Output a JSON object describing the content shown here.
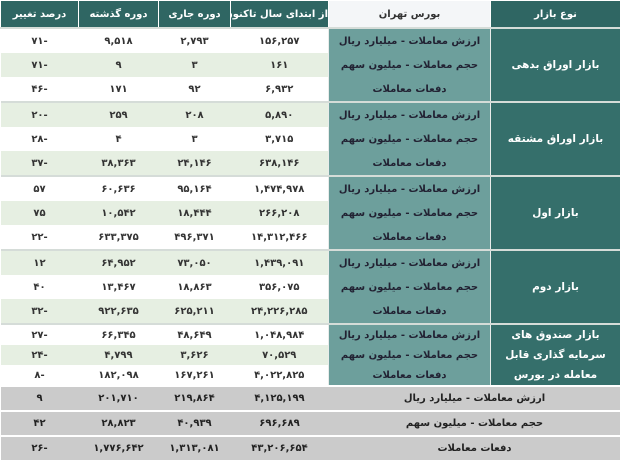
{
  "headers": {
    "market_type": "نوع بازار",
    "exchange": "بورس تهران",
    "ytd": "از ابتدای سال تاکنون",
    "current": "دوره جاری",
    "previous": "دوره گذشته",
    "change": "درصد تغییر"
  },
  "groups": [
    {
      "label": "بازار اوراق بدهی",
      "rows": [
        {
          "metric": "ارزش معاملات - میلیارد ریال",
          "ytd": "۱۵۶,۲۵۷",
          "current": "۲,۷۹۳",
          "previous": "۹,۵۱۸",
          "change": "-۷۱"
        },
        {
          "metric": "حجم معاملات - میلیون سهم",
          "ytd": "۱۶۱",
          "current": "۳",
          "previous": "۹",
          "change": "-۷۱"
        },
        {
          "metric": "دفعات معاملات",
          "ytd": "۶,۹۳۲",
          "current": "۹۲",
          "previous": "۱۷۱",
          "change": "-۴۶"
        }
      ]
    },
    {
      "label": "بازار اوراق مشتقه",
      "rows": [
        {
          "metric": "ارزش معاملات - میلیارد ریال",
          "ytd": "۵,۸۹۰",
          "current": "۲۰۸",
          "previous": "۲۵۹",
          "change": "-۲۰"
        },
        {
          "metric": "حجم معاملات - میلیون سهم",
          "ytd": "۳,۷۱۵",
          "current": "۳",
          "previous": "۴",
          "change": "-۲۸"
        },
        {
          "metric": "دفعات معاملات",
          "ytd": "۶۳۸,۱۴۶",
          "current": "۲۴,۱۴۶",
          "previous": "۳۸,۳۶۳",
          "change": "-۳۷"
        }
      ]
    },
    {
      "label": "بازار اول",
      "rows": [
        {
          "metric": "ارزش معاملات - میلیارد ریال",
          "ytd": "۱,۴۷۴,۹۷۸",
          "current": "۹۵,۱۶۴",
          "previous": "۶۰,۶۳۶",
          "change": "۵۷"
        },
        {
          "metric": "حجم معاملات - میلیون سهم",
          "ytd": "۲۶۶,۲۰۸",
          "current": "۱۸,۴۴۴",
          "previous": "۱۰,۵۴۲",
          "change": "۷۵"
        },
        {
          "metric": "دفعات معاملات",
          "ytd": "۱۴,۳۱۲,۴۶۶",
          "current": "۴۹۶,۳۷۱",
          "previous": "۶۳۳,۳۷۵",
          "change": "-۲۲"
        }
      ]
    },
    {
      "label": "بازار دوم",
      "rows": [
        {
          "metric": "ارزش معاملات - میلیارد ریال",
          "ytd": "۱,۴۳۹,۰۹۱",
          "current": "۷۳,۰۵۰",
          "previous": "۶۴,۹۵۲",
          "change": "۱۲"
        },
        {
          "metric": "حجم معاملات - میلیون سهم",
          "ytd": "۳۵۶,۰۷۵",
          "current": "۱۸,۸۶۳",
          "previous": "۱۳,۴۶۷",
          "change": "۴۰"
        },
        {
          "metric": "دفعات معاملات",
          "ytd": "۲۴,۲۲۶,۲۸۵",
          "current": "۶۲۵,۲۱۱",
          "previous": "۹۲۲,۶۳۵",
          "change": "-۳۲"
        }
      ]
    },
    {
      "label": "بازار صندوق های سرمایه گذاری قابل معامله در بورس",
      "rows": [
        {
          "metric": "ارزش معاملات - میلیارد ریال",
          "ytd": "۱,۰۴۸,۹۸۴",
          "current": "۴۸,۶۴۹",
          "previous": "۶۶,۳۴۵",
          "change": "-۲۷"
        },
        {
          "metric": "حجم معاملات - میلیون سهم",
          "ytd": "۷۰,۵۲۹",
          "current": "۳,۶۲۶",
          "previous": "۴,۷۹۹",
          "change": "-۲۴"
        },
        {
          "metric": "دفعات معاملات",
          "ytd": "۴,۰۲۲,۸۲۵",
          "current": "۱۶۷,۲۶۱",
          "previous": "۱۸۲,۰۹۸",
          "change": "-۸"
        }
      ]
    }
  ],
  "totals": [
    {
      "metric": "ارزش معاملات - میلیارد ریال",
      "ytd": "۴,۱۲۵,۱۹۹",
      "current": "۲۱۹,۸۶۴",
      "previous": "۲۰۱,۷۱۰",
      "change": "۹"
    },
    {
      "metric": "حجم معاملات - میلیون سهم",
      "ytd": "۶۹۶,۶۸۹",
      "current": "۴۰,۹۳۹",
      "previous": "۲۸,۸۲۳",
      "change": "۴۲"
    },
    {
      "metric": "دفعات معاملات",
      "ytd": "۴۳,۲۰۶,۶۵۴",
      "current": "۱,۳۱۳,۰۸۱",
      "previous": "۱,۷۷۶,۶۴۲",
      "change": "-۲۶"
    }
  ],
  "colors": {
    "header": "#2f6663",
    "market_cell": "#356f6b",
    "metric_cell": "#6d9f9c",
    "alt_row": "#e6efe2",
    "totals": "#cbcbcb"
  }
}
